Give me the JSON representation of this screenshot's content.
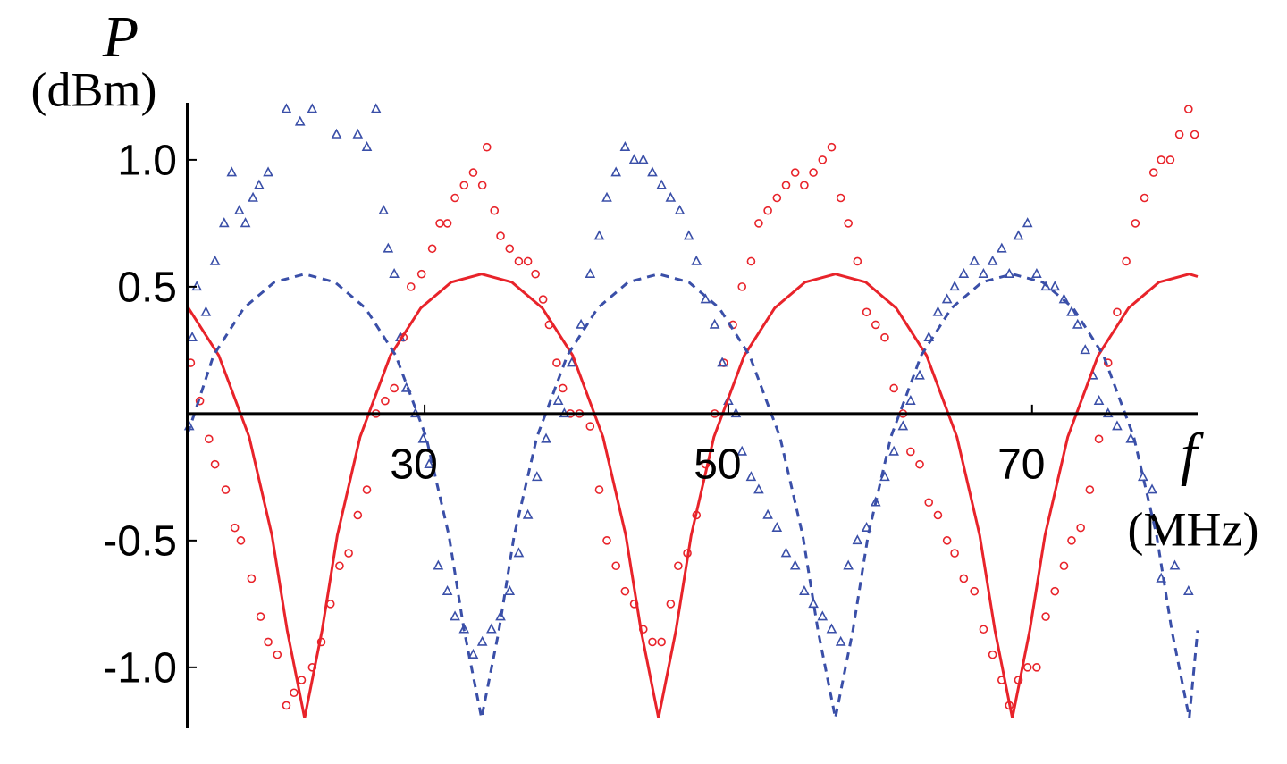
{
  "chart_data": {
    "type": "scatter",
    "y_label": "P",
    "y_unit": "(dBm)",
    "x_label": "f",
    "x_unit": "(MHz)",
    "xlim": [
      14.4,
      80.9
    ],
    "ylim": [
      -1.24,
      1.225
    ],
    "xticks": [
      30,
      50,
      70
    ],
    "yticks": [
      {
        "value": -1,
        "label": "-1.0"
      },
      -0.5,
      0.5,
      {
        "value": 1,
        "label": "1.0"
      }
    ],
    "series": [
      {
        "kind": "line",
        "dash": false,
        "color": "#e8232a",
        "x": [
          14.4,
          14.45,
          16.45,
          18.45,
          19.95,
          20.95,
          22.1,
          23.25,
          24.25,
          25.75,
          27.75,
          29.75,
          31.75,
          33.75,
          35.75,
          37.75,
          39.75,
          41.75,
          43.25,
          44.25,
          45.4,
          46.55,
          47.55,
          49.05,
          51.05,
          53.05,
          55.05,
          57.05,
          59.05,
          61.05,
          63.05,
          65.05,
          66.55,
          67.55,
          68.7,
          69.85,
          70.85,
          72.35,
          74.35,
          76.35,
          78.35,
          80.35,
          80.9
        ],
        "values": [
          0.43,
          0.416,
          0.229,
          -0.092,
          -0.48,
          -0.854,
          -1.2,
          -0.854,
          -0.48,
          -0.092,
          0.229,
          0.416,
          0.518,
          0.55,
          0.518,
          0.416,
          0.229,
          -0.092,
          -0.48,
          -0.854,
          -1.2,
          -0.854,
          -0.48,
          -0.092,
          0.229,
          0.416,
          0.518,
          0.55,
          0.518,
          0.416,
          0.229,
          -0.092,
          -0.48,
          -0.854,
          -1.2,
          -0.854,
          -0.48,
          -0.092,
          0.229,
          0.416,
          0.518,
          0.55,
          0.54
        ]
      },
      {
        "kind": "line",
        "dash": true,
        "color": "#3a4fa8",
        "x": [
          14.4,
          16.1,
          18.1,
          20.1,
          22.1,
          24.1,
          26.1,
          28.1,
          30.1,
          31.6,
          32.6,
          33.75,
          34.9,
          35.9,
          37.4,
          39.4,
          41.4,
          43.4,
          45.4,
          47.4,
          49.4,
          51.4,
          53.4,
          54.9,
          55.9,
          57.05,
          58.2,
          59.2,
          60.7,
          62.7,
          64.7,
          66.7,
          68.7,
          70.7,
          72.7,
          74.7,
          76.7,
          78.2,
          79.2,
          80.35,
          80.9
        ],
        "values": [
          -0.08,
          0.229,
          0.416,
          0.518,
          0.55,
          0.518,
          0.416,
          0.229,
          -0.092,
          -0.48,
          -0.854,
          -1.2,
          -0.854,
          -0.48,
          -0.092,
          0.229,
          0.416,
          0.518,
          0.55,
          0.518,
          0.416,
          0.229,
          -0.092,
          -0.48,
          -0.854,
          -1.2,
          -0.854,
          -0.48,
          -0.092,
          0.229,
          0.416,
          0.518,
          0.55,
          0.518,
          0.416,
          0.229,
          -0.092,
          -0.48,
          -0.854,
          -1.2,
          -0.854
        ]
      },
      {
        "kind": "points",
        "marker": "circle",
        "color": "#e8232a",
        "x": [
          14.6,
          15.2,
          15.8,
          16.2,
          16.9,
          17.5,
          17.9,
          18.6,
          19.2,
          19.7,
          20.3,
          20.9,
          21.4,
          21.9,
          22.6,
          23.2,
          23.8,
          24.4,
          25.0,
          25.6,
          26.2,
          26.8,
          27.4,
          28.0,
          28.6,
          29.1,
          29.8,
          30.5,
          31.0,
          31.5,
          32.0,
          32.6,
          33.2,
          33.8,
          34.1,
          34.6,
          35.0,
          35.6,
          36.2,
          36.8,
          37.3,
          37.8,
          38.2,
          38.7,
          39.1,
          39.6,
          40.2,
          40.9,
          41.5,
          42.0,
          42.6,
          43.2,
          43.8,
          44.4,
          45.0,
          45.6,
          46.2,
          46.7,
          47.3,
          47.9,
          48.5,
          49.1,
          49.7,
          50.3,
          50.9,
          51.5,
          52.0,
          52.6,
          53.2,
          53.8,
          54.4,
          55.0,
          55.6,
          56.2,
          56.8,
          57.4,
          57.9,
          58.5,
          59.1,
          59.7,
          60.3,
          60.9,
          61.5,
          62.0,
          62.6,
          63.2,
          63.8,
          64.4,
          64.9,
          65.5,
          66.2,
          66.8,
          67.4,
          68.0,
          68.5,
          69.1,
          69.7,
          70.3,
          70.9,
          71.5,
          72.1,
          72.6,
          73.2,
          73.8,
          74.4,
          75.0,
          75.6,
          76.2,
          76.8,
          77.4,
          78.0,
          78.5,
          79.1,
          79.7,
          80.3,
          80.7
        ],
        "values": [
          0.2,
          0.05,
          -0.1,
          -0.2,
          -0.3,
          -0.45,
          -0.5,
          -0.65,
          -0.8,
          -0.9,
          -0.95,
          -1.15,
          -1.1,
          -1.05,
          -1.0,
          -0.9,
          -0.75,
          -0.6,
          -0.55,
          -0.4,
          -0.3,
          0.0,
          0.05,
          0.1,
          0.3,
          0.5,
          0.55,
          0.65,
          0.75,
          0.75,
          0.85,
          0.9,
          0.95,
          0.9,
          1.05,
          0.8,
          0.7,
          0.65,
          0.6,
          0.6,
          0.55,
          0.45,
          0.35,
          0.2,
          0.1,
          0.0,
          0.0,
          -0.05,
          -0.3,
          -0.5,
          -0.6,
          -0.7,
          -0.75,
          -0.85,
          -0.9,
          -0.9,
          -0.75,
          -0.6,
          -0.55,
          -0.4,
          -0.2,
          0.0,
          0.2,
          0.35,
          0.5,
          0.6,
          0.75,
          0.8,
          0.85,
          0.9,
          0.95,
          0.9,
          0.95,
          1.0,
          1.05,
          0.85,
          0.75,
          0.6,
          0.4,
          0.35,
          0.3,
          0.1,
          0.0,
          -0.15,
          -0.2,
          -0.35,
          -0.4,
          -0.5,
          -0.55,
          -0.65,
          -0.7,
          -0.85,
          -0.95,
          -1.05,
          -1.15,
          -1.05,
          -1.0,
          -1.0,
          -0.8,
          -0.7,
          -0.6,
          -0.5,
          -0.45,
          -0.3,
          -0.1,
          0.2,
          0.4,
          0.6,
          0.75,
          0.85,
          0.95,
          1.0,
          1.0,
          1.1,
          1.2,
          1.1
        ]
      },
      {
        "kind": "points",
        "marker": "triangle",
        "color": "#3a4fa8",
        "x": [
          14.5,
          14.7,
          15.0,
          15.6,
          16.2,
          16.8,
          17.3,
          17.8,
          18.2,
          18.7,
          19.1,
          19.7,
          20.9,
          21.8,
          22.6,
          24.2,
          25.6,
          26.2,
          26.8,
          27.3,
          27.6,
          28.0,
          28.4,
          28.8,
          29.4,
          29.9,
          30.3,
          30.9,
          31.5,
          32.0,
          32.6,
          33.2,
          33.8,
          34.4,
          35.0,
          35.6,
          36.2,
          36.8,
          37.4,
          38.0,
          38.8,
          39.2,
          39.7,
          40.3,
          40.9,
          41.5,
          42.0,
          42.6,
          43.2,
          43.8,
          44.4,
          45.0,
          45.6,
          46.2,
          46.8,
          47.4,
          47.9,
          48.5,
          49.1,
          49.6,
          50.0,
          50.5,
          50.9,
          51.5,
          52.0,
          52.6,
          53.2,
          53.8,
          54.4,
          55.0,
          55.6,
          56.2,
          56.8,
          57.4,
          57.9,
          58.5,
          59.1,
          59.7,
          60.3,
          60.9,
          61.5,
          62.0,
          62.6,
          63.2,
          63.8,
          64.4,
          64.9,
          65.5,
          66.2,
          66.8,
          67.4,
          68.0,
          68.5,
          69.1,
          69.7,
          70.3,
          70.9,
          71.5,
          72.1,
          72.6,
          73.0,
          73.5,
          74.0,
          74.4,
          75.0,
          75.6,
          76.5,
          77.3,
          77.9,
          78.5,
          79.4,
          80.3
        ],
        "values": [
          -0.05,
          0.3,
          0.5,
          0.4,
          0.6,
          0.75,
          0.95,
          0.8,
          0.75,
          0.85,
          0.9,
          0.95,
          1.2,
          1.15,
          1.2,
          1.1,
          1.1,
          1.05,
          1.2,
          0.8,
          0.65,
          0.55,
          0.3,
          0.1,
          0.0,
          -0.1,
          -0.2,
          -0.6,
          -0.7,
          -0.8,
          -0.85,
          -0.95,
          -0.9,
          -0.85,
          -0.8,
          -0.7,
          -0.55,
          -0.4,
          -0.25,
          -0.1,
          0.05,
          0.0,
          0.2,
          0.35,
          0.55,
          0.7,
          0.85,
          0.95,
          1.05,
          1.0,
          1.0,
          0.95,
          0.9,
          0.85,
          0.8,
          0.7,
          0.6,
          0.45,
          0.35,
          0.2,
          0.05,
          0.0,
          -0.15,
          -0.25,
          -0.3,
          -0.4,
          -0.45,
          -0.55,
          -0.6,
          -0.7,
          -0.75,
          -0.8,
          -0.85,
          -0.9,
          -0.6,
          -0.5,
          -0.45,
          -0.35,
          -0.25,
          -0.15,
          -0.05,
          0.05,
          0.15,
          0.3,
          0.4,
          0.45,
          0.5,
          0.55,
          0.6,
          0.55,
          0.6,
          0.65,
          0.55,
          0.7,
          0.75,
          0.55,
          0.5,
          0.5,
          0.45,
          0.4,
          0.35,
          0.25,
          0.15,
          0.05,
          0.0,
          -0.05,
          -0.1,
          -0.25,
          -0.3,
          -0.65,
          -0.6,
          -0.7
        ]
      }
    ]
  }
}
